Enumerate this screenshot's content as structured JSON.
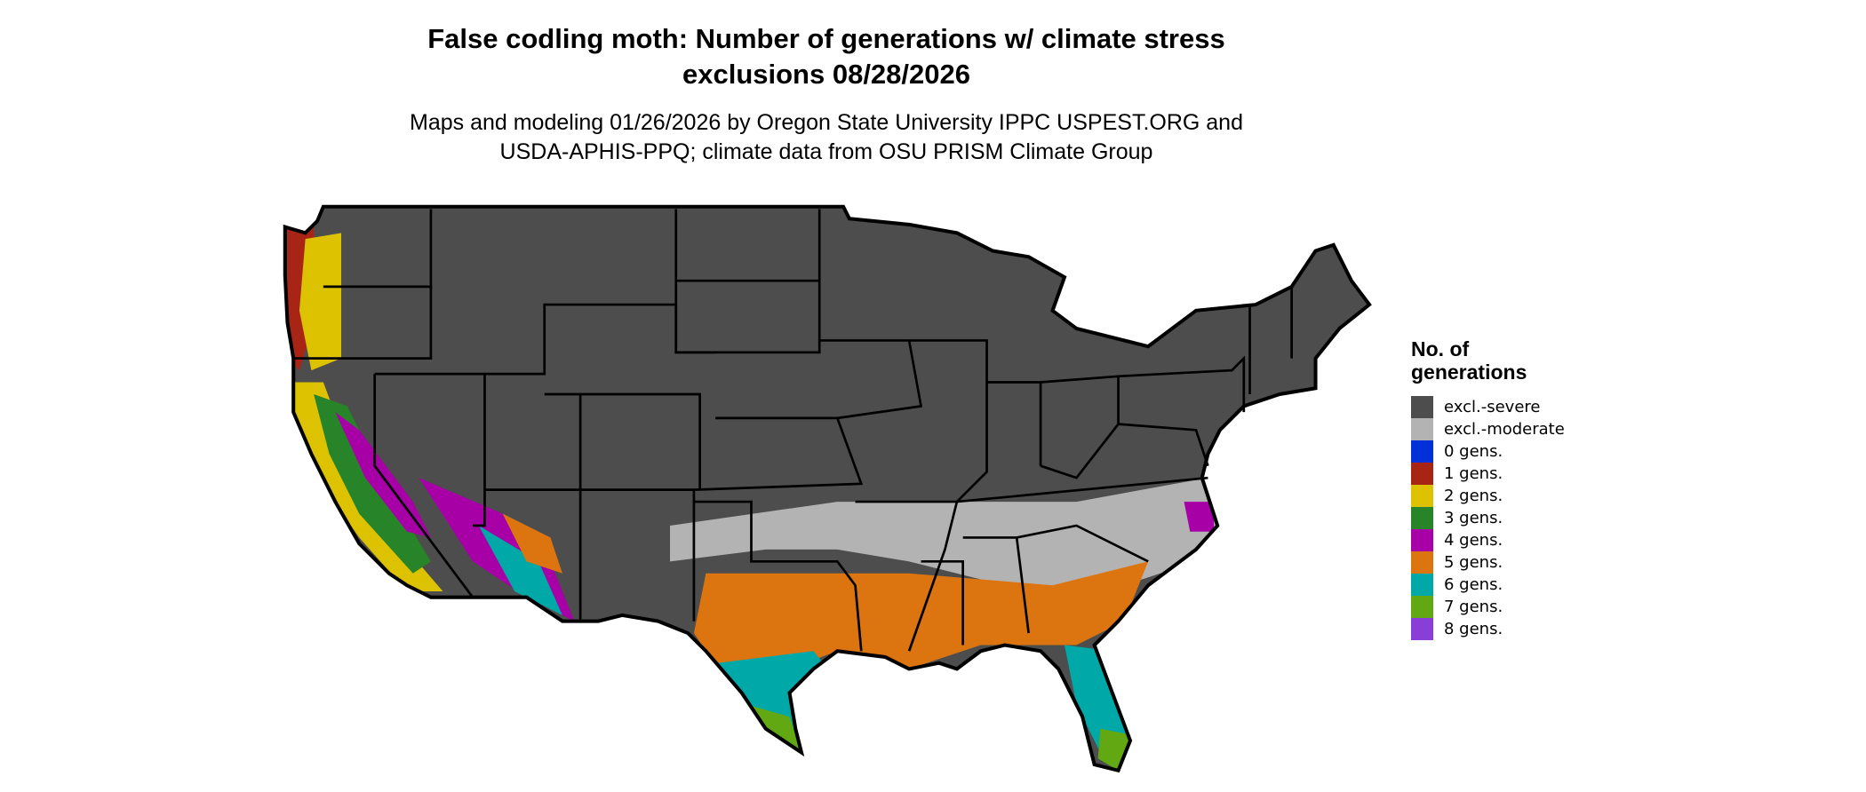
{
  "title_line1": "False codling moth: Number of generations w/ climate stress",
  "title_line2": "exclusions 08/28/2026",
  "subtitle_line1": "Maps and modeling 01/26/2026 by Oregon State University IPPC USPEST.ORG and",
  "subtitle_line2": "USDA-APHIS-PPQ; climate data from OSU PRISM Climate Group",
  "legend": {
    "title_line1": "No. of",
    "title_line2": "generations",
    "items": [
      {
        "label": "excl.-severe",
        "color": "#4d4d4d"
      },
      {
        "label": "excl.-moderate",
        "color": "#b3b3b3"
      },
      {
        "label": "0 gens.",
        "color": "#0030d8"
      },
      {
        "label": "1 gens.",
        "color": "#a82515"
      },
      {
        "label": "2 gens.",
        "color": "#dcc200"
      },
      {
        "label": "3 gens.",
        "color": "#288428"
      },
      {
        "label": "4 gens.",
        "color": "#a600a6"
      },
      {
        "label": "5 gens.",
        "color": "#dc7410"
      },
      {
        "label": "6 gens.",
        "color": "#00a8a8"
      },
      {
        "label": "7 gens.",
        "color": "#62a812"
      },
      {
        "label": "8 gens.",
        "color": "#8a3ed8"
      }
    ]
  }
}
